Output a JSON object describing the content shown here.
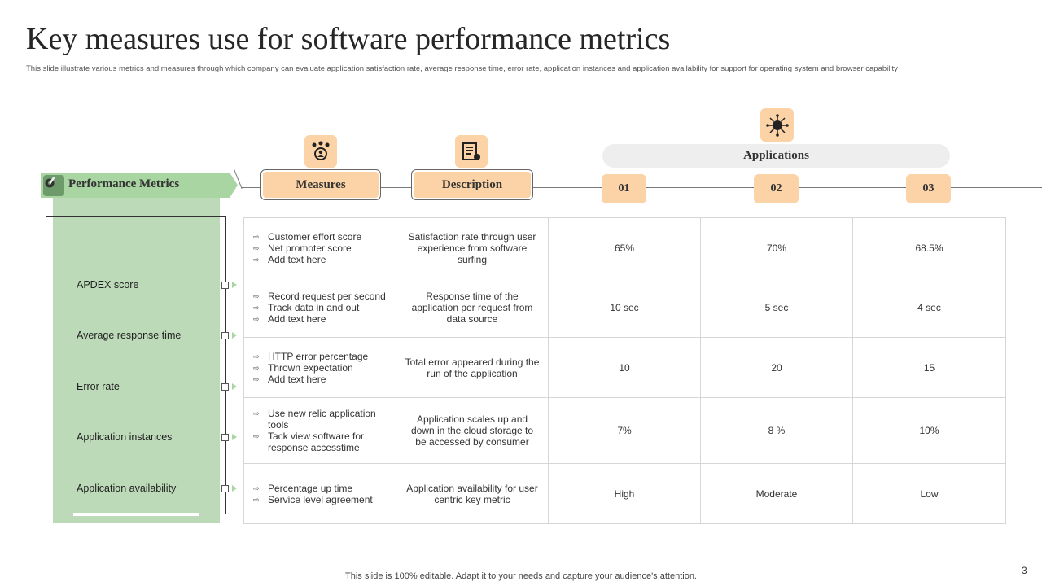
{
  "title": "Key measures use for software performance metrics",
  "subtitle": "This slide illustrate various metrics and measures through which company can evaluate application satisfaction rate, average response time, error rate, application instances and application  availability   for support for operating system and browser capability",
  "header": {
    "performance_metrics": "Performance Metrics",
    "measures": "Measures",
    "description": "Description",
    "applications": "Applications",
    "app_numbers": [
      "01",
      "02",
      "03"
    ]
  },
  "metrics": [
    "APDEX score",
    "Average  response time",
    "Error  rate",
    "Application instances",
    "Application availability"
  ],
  "rows": [
    {
      "measures": [
        "Customer effort score",
        "Net promoter score",
        "Add text here"
      ],
      "description": "Satisfaction rate through user experience from software surfing",
      "values": [
        "65%",
        "70%",
        "68.5%"
      ]
    },
    {
      "measures": [
        "Record request per second",
        "Track data in and out",
        "Add text here"
      ],
      "description": "Response time of the application per request from data source",
      "values": [
        "10 sec",
        "5 sec",
        "4 sec"
      ]
    },
    {
      "measures": [
        "HTTP error percentage",
        "Thrown expectation",
        "Add text here"
      ],
      "description": "Total error appeared during the run of the application",
      "values": [
        "10",
        "20",
        "15"
      ]
    },
    {
      "measures": [
        "Use new relic application tools",
        "Tack view software  for response accesstime"
      ],
      "description": "Application scales up and down in the cloud storage to be accessed by consumer",
      "values": [
        "7%",
        "8 %",
        "10%"
      ]
    },
    {
      "measures": [
        "Percentage up time",
        "Service level agreement"
      ],
      "description": "Application availability for user centric  key metric",
      "values": [
        "High",
        "Moderate",
        "Low"
      ]
    }
  ],
  "bullet_glyph": "⇨",
  "footer": "This slide is 100% editable. Adapt it to your needs and capture your audience's attention.",
  "page_number": "3",
  "colors": {
    "accent_orange": "#fbd3a6",
    "accent_green": "#bcdab8",
    "banner_green": "#a8d5a2"
  },
  "icons": [
    "settings-wrench-icon",
    "team-gear-icon",
    "document-icon",
    "network-hub-icon"
  ]
}
